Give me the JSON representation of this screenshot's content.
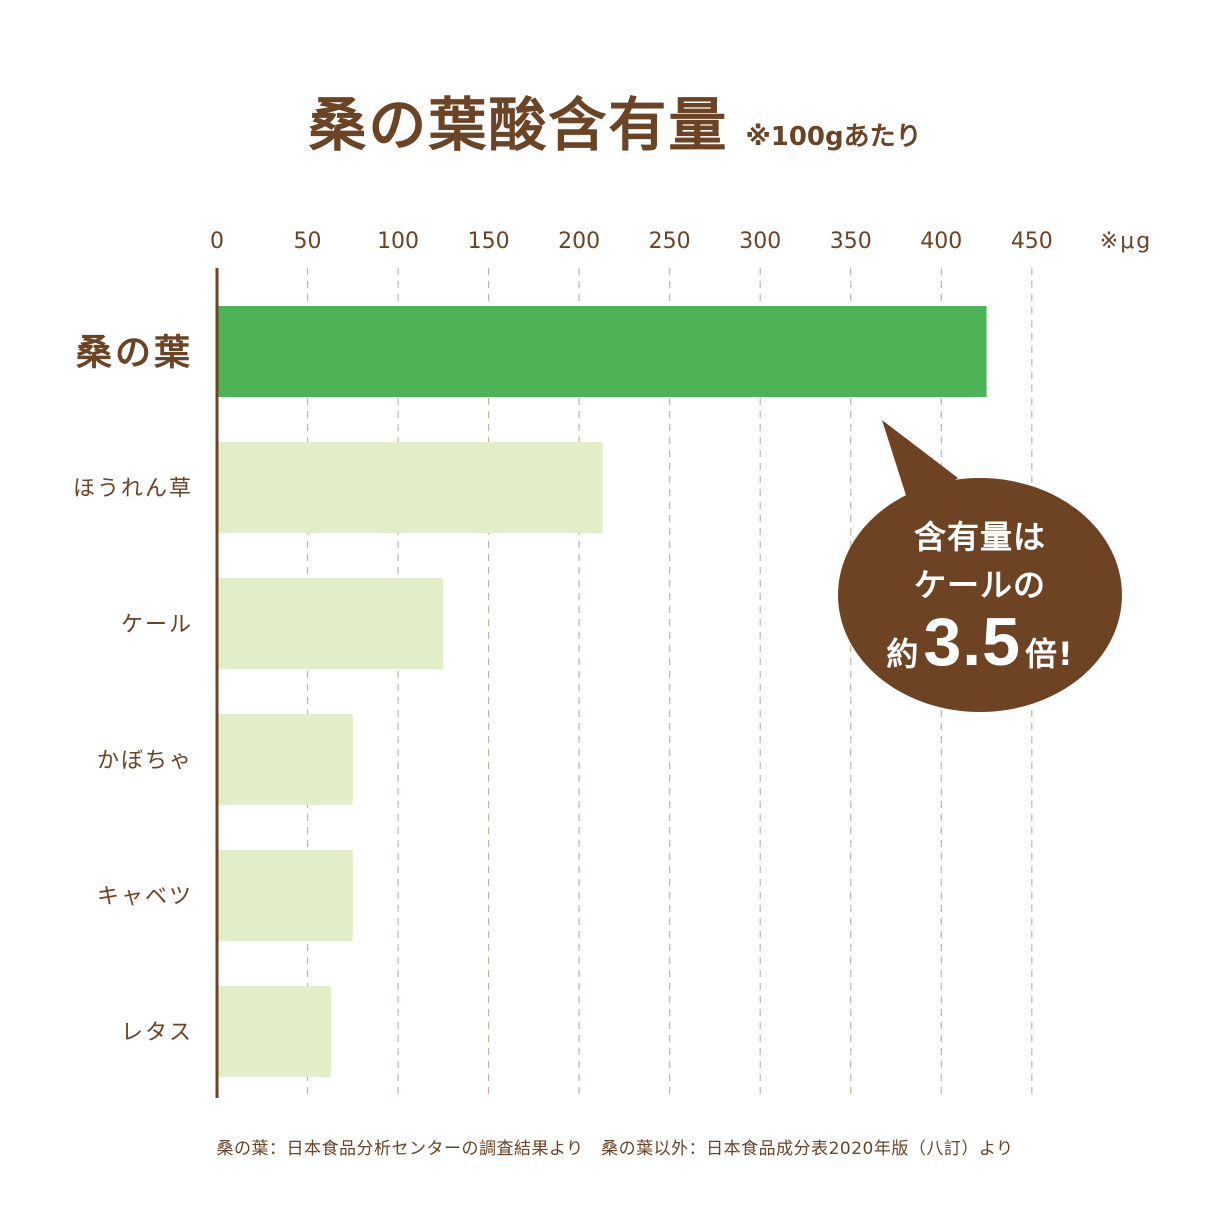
{
  "header": {
    "title": "桑の葉酸含有量",
    "subtitle": "※100gあたり"
  },
  "chart_data": {
    "type": "bar",
    "orientation": "horizontal",
    "title": "桑の葉酸含有量",
    "subtitle": "※100gあたり",
    "unit_label": "※μg",
    "xlim": [
      0,
      450
    ],
    "ticks": [
      "0",
      "50",
      "100",
      "150",
      "200",
      "250",
      "300",
      "350",
      "400",
      "450"
    ],
    "grid": "dashed vertical",
    "categories": [
      "桑の葉",
      "ほうれん草",
      "ケール",
      "かぼちゃ",
      "キャベツ",
      "レタス"
    ],
    "values": [
      425,
      213,
      125,
      75,
      75,
      63
    ],
    "colors": {
      "highlight": "#4db356",
      "normal": "#e2eec8",
      "axis": "#6b4325",
      "grid": "#c9b1a0"
    }
  },
  "callout": {
    "line1": "含有量は",
    "line2": "ケールの",
    "prefix": "約",
    "number": "3.5",
    "suffix": "倍!"
  },
  "footnote": "桑の葉：日本食品分析センターの調査結果より　桑の葉以外：日本食品成分表2020年版（八訂）より"
}
